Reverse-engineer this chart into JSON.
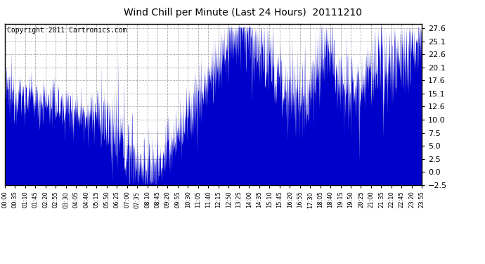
{
  "title": "Wind Chill per Minute (Last 24 Hours)  20111210",
  "copyright": "Copyright 2011 Cartronics.com",
  "line_color": "#0000CC",
  "bg_color": "#ffffff",
  "plot_bg_color": "#ffffff",
  "grid_color": "#999999",
  "yticks": [
    27.6,
    25.1,
    22.6,
    20.1,
    17.6,
    15.1,
    12.6,
    10.0,
    7.5,
    5.0,
    2.5,
    0.0,
    -2.5
  ],
  "ymin": -2.5,
  "ymax": 28.5,
  "xtick_labels": [
    "00:00",
    "00:35",
    "01:10",
    "01:45",
    "02:20",
    "02:55",
    "03:30",
    "04:05",
    "04:40",
    "05:15",
    "05:50",
    "06:25",
    "07:00",
    "07:35",
    "08:10",
    "08:45",
    "09:20",
    "09:55",
    "10:30",
    "11:05",
    "11:40",
    "12:15",
    "12:50",
    "13:25",
    "14:00",
    "14:35",
    "15:10",
    "15:45",
    "16:20",
    "16:55",
    "17:30",
    "18:05",
    "18:40",
    "19:15",
    "19:50",
    "20:25",
    "21:00",
    "21:35",
    "22:10",
    "22:45",
    "23:20",
    "23:55"
  ],
  "n_points": 1440
}
